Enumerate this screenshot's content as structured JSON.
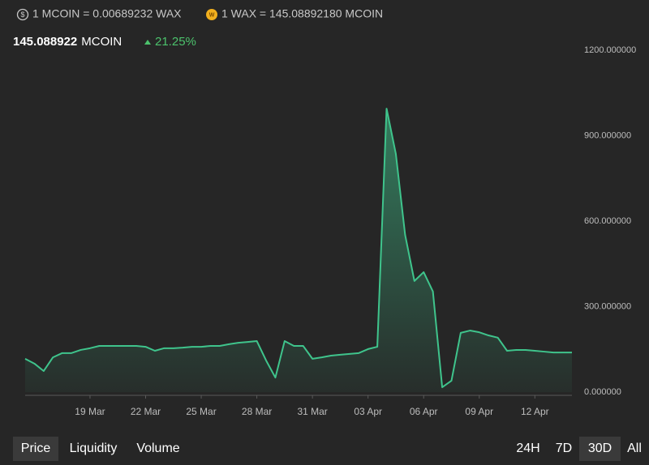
{
  "header": {
    "rate_1": "1 MCOIN = 0.00689232 WAX",
    "rate_2": "1 WAX = 145.08892180 MCOIN",
    "price": "145.088922",
    "unit": "MCOIN",
    "change": "21.25%"
  },
  "chart_data": {
    "type": "area",
    "categories": [
      null,
      null,
      null,
      null,
      null,
      null,
      null,
      "19 Mar",
      null,
      null,
      null,
      null,
      null,
      "22 Mar",
      null,
      null,
      null,
      null,
      null,
      "25 Mar",
      null,
      null,
      null,
      null,
      null,
      "28 Mar",
      null,
      null,
      null,
      null,
      null,
      "31 Mar",
      null,
      null,
      null,
      null,
      null,
      "03 Apr",
      null,
      null,
      null,
      null,
      null,
      "06 Apr",
      null,
      null,
      null,
      null,
      null,
      "09 Apr",
      null,
      null,
      null,
      null,
      null,
      "12 Apr",
      null,
      null,
      null,
      null
    ],
    "values": [
      117,
      100,
      74,
      122,
      137,
      137,
      148,
      154,
      162,
      162,
      162,
      162,
      162,
      159,
      145,
      154,
      154,
      156,
      159,
      159,
      162,
      162,
      168,
      173,
      176,
      179,
      111,
      51,
      179,
      162,
      162,
      117,
      122,
      128,
      131,
      134,
      137,
      151,
      159,
      995,
      836,
      552,
      390,
      421,
      353,
      17,
      40,
      208,
      216,
      210,
      199,
      191,
      145,
      148,
      148,
      145,
      142,
      139,
      139,
      139
    ],
    "color": "#3fc48c",
    "ylim": [
      0,
      1200
    ],
    "yticks": [
      {
        "value": 0,
        "label": "0.000000"
      },
      {
        "value": 300,
        "label": "300.000000"
      },
      {
        "value": 600,
        "label": "600.000000"
      },
      {
        "value": 900,
        "label": "900.000000"
      },
      {
        "value": 1200,
        "label": "1200.000000"
      }
    ]
  },
  "tabs": [
    "Price",
    "Liquidity",
    "Volume"
  ],
  "ranges": [
    "24H",
    "7D",
    "30D",
    "All"
  ]
}
